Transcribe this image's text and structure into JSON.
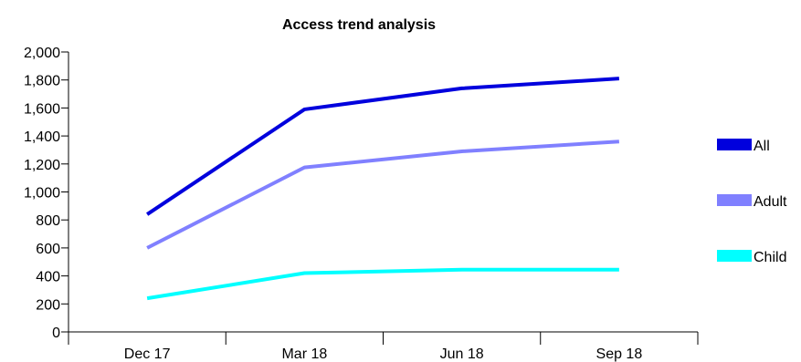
{
  "chart_data": {
    "type": "line",
    "title": "Access trend analysis",
    "xlabel": "",
    "ylabel": "",
    "categories": [
      "Dec 17",
      "Mar 18",
      "Jun 18",
      "Sep 18"
    ],
    "ylim": [
      0,
      2000
    ],
    "yticks": [
      0,
      200,
      400,
      600,
      800,
      1000,
      1200,
      1400,
      1600,
      1800,
      2000
    ],
    "ytick_labels": [
      "0",
      "200",
      "400",
      "600",
      "800",
      "1,000",
      "1,200",
      "1,400",
      "1,600",
      "1,800",
      "2,000"
    ],
    "grid": false,
    "legend_position": "right",
    "series": [
      {
        "name": "All",
        "color": "#0000dd",
        "values": [
          840,
          1590,
          1740,
          1810
        ]
      },
      {
        "name": "Adult",
        "color": "#8080ff",
        "values": [
          600,
          1175,
          1290,
          1360
        ]
      },
      {
        "name": "Child",
        "color": "#00ffff",
        "values": [
          240,
          420,
          445,
          445
        ]
      }
    ]
  }
}
